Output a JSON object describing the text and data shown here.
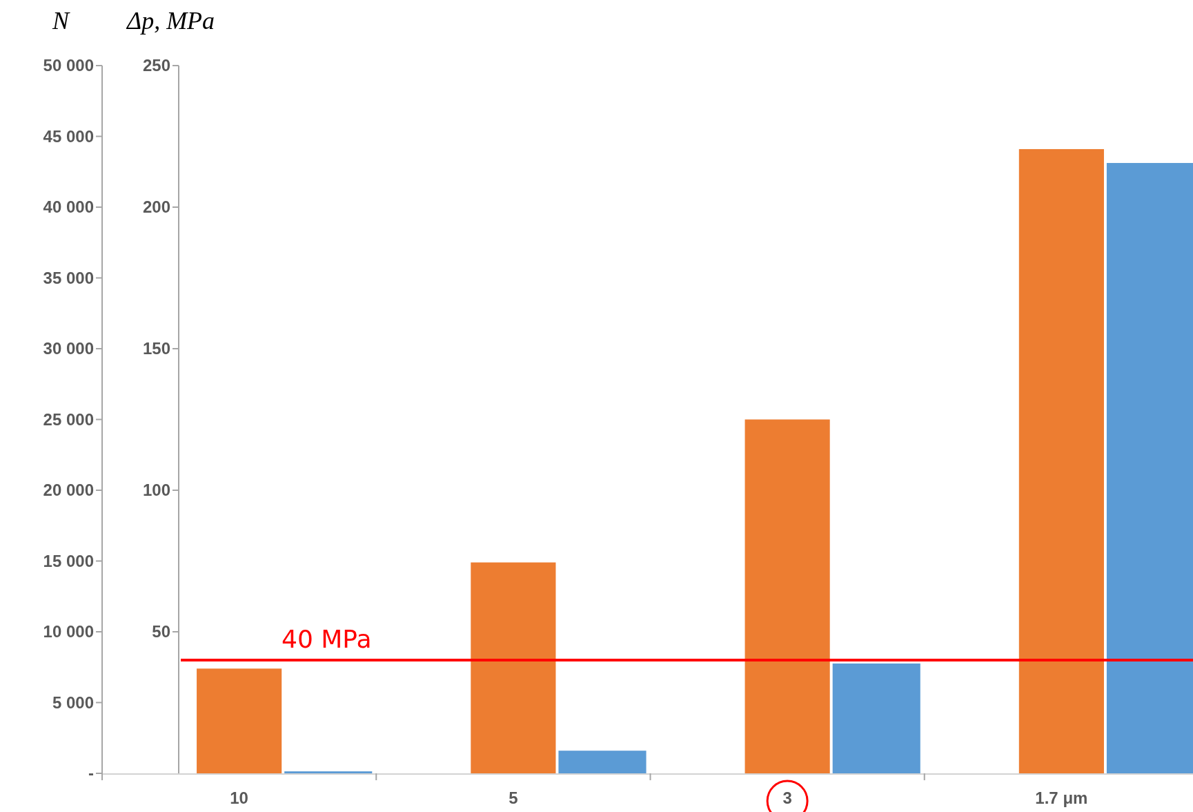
{
  "chart_data": {
    "type": "bar",
    "ylabel": "N",
    "y2label": "Δp, MPa",
    "categories": [
      "10",
      "5",
      "3",
      "1.7 μm"
    ],
    "series": [
      {
        "color": "#ed7d31",
        "values": [
          7400,
          14900,
          25000,
          44100
        ]
      },
      {
        "color": "#5b9bd5",
        "values": [
          0.7,
          8,
          38.8,
          215.6
        ],
        "axis": "y2"
      }
    ],
    "ylim": [
      0,
      50000
    ],
    "yticks": [
      {
        "value": 0,
        "label": "-"
      },
      {
        "value": 5000,
        "label": "5 000"
      },
      {
        "value": 10000,
        "label": "10 000"
      },
      {
        "value": 15000,
        "label": "15 000"
      },
      {
        "value": 20000,
        "label": "20 000"
      },
      {
        "value": 25000,
        "label": "25 000"
      },
      {
        "value": 30000,
        "label": "30 000"
      },
      {
        "value": 35000,
        "label": "35 000"
      },
      {
        "value": 40000,
        "label": "40 000"
      },
      {
        "value": 45000,
        "label": "45 000"
      },
      {
        "value": 50000,
        "label": "50 000"
      }
    ],
    "y2lim": [
      0,
      250
    ],
    "y2ticks": [
      50,
      100,
      150,
      200,
      250
    ],
    "ref_lines": [
      {
        "axis": "y2",
        "value": 40,
        "label": "40 MPa",
        "color": "#ff0000"
      }
    ],
    "grid": false
  }
}
